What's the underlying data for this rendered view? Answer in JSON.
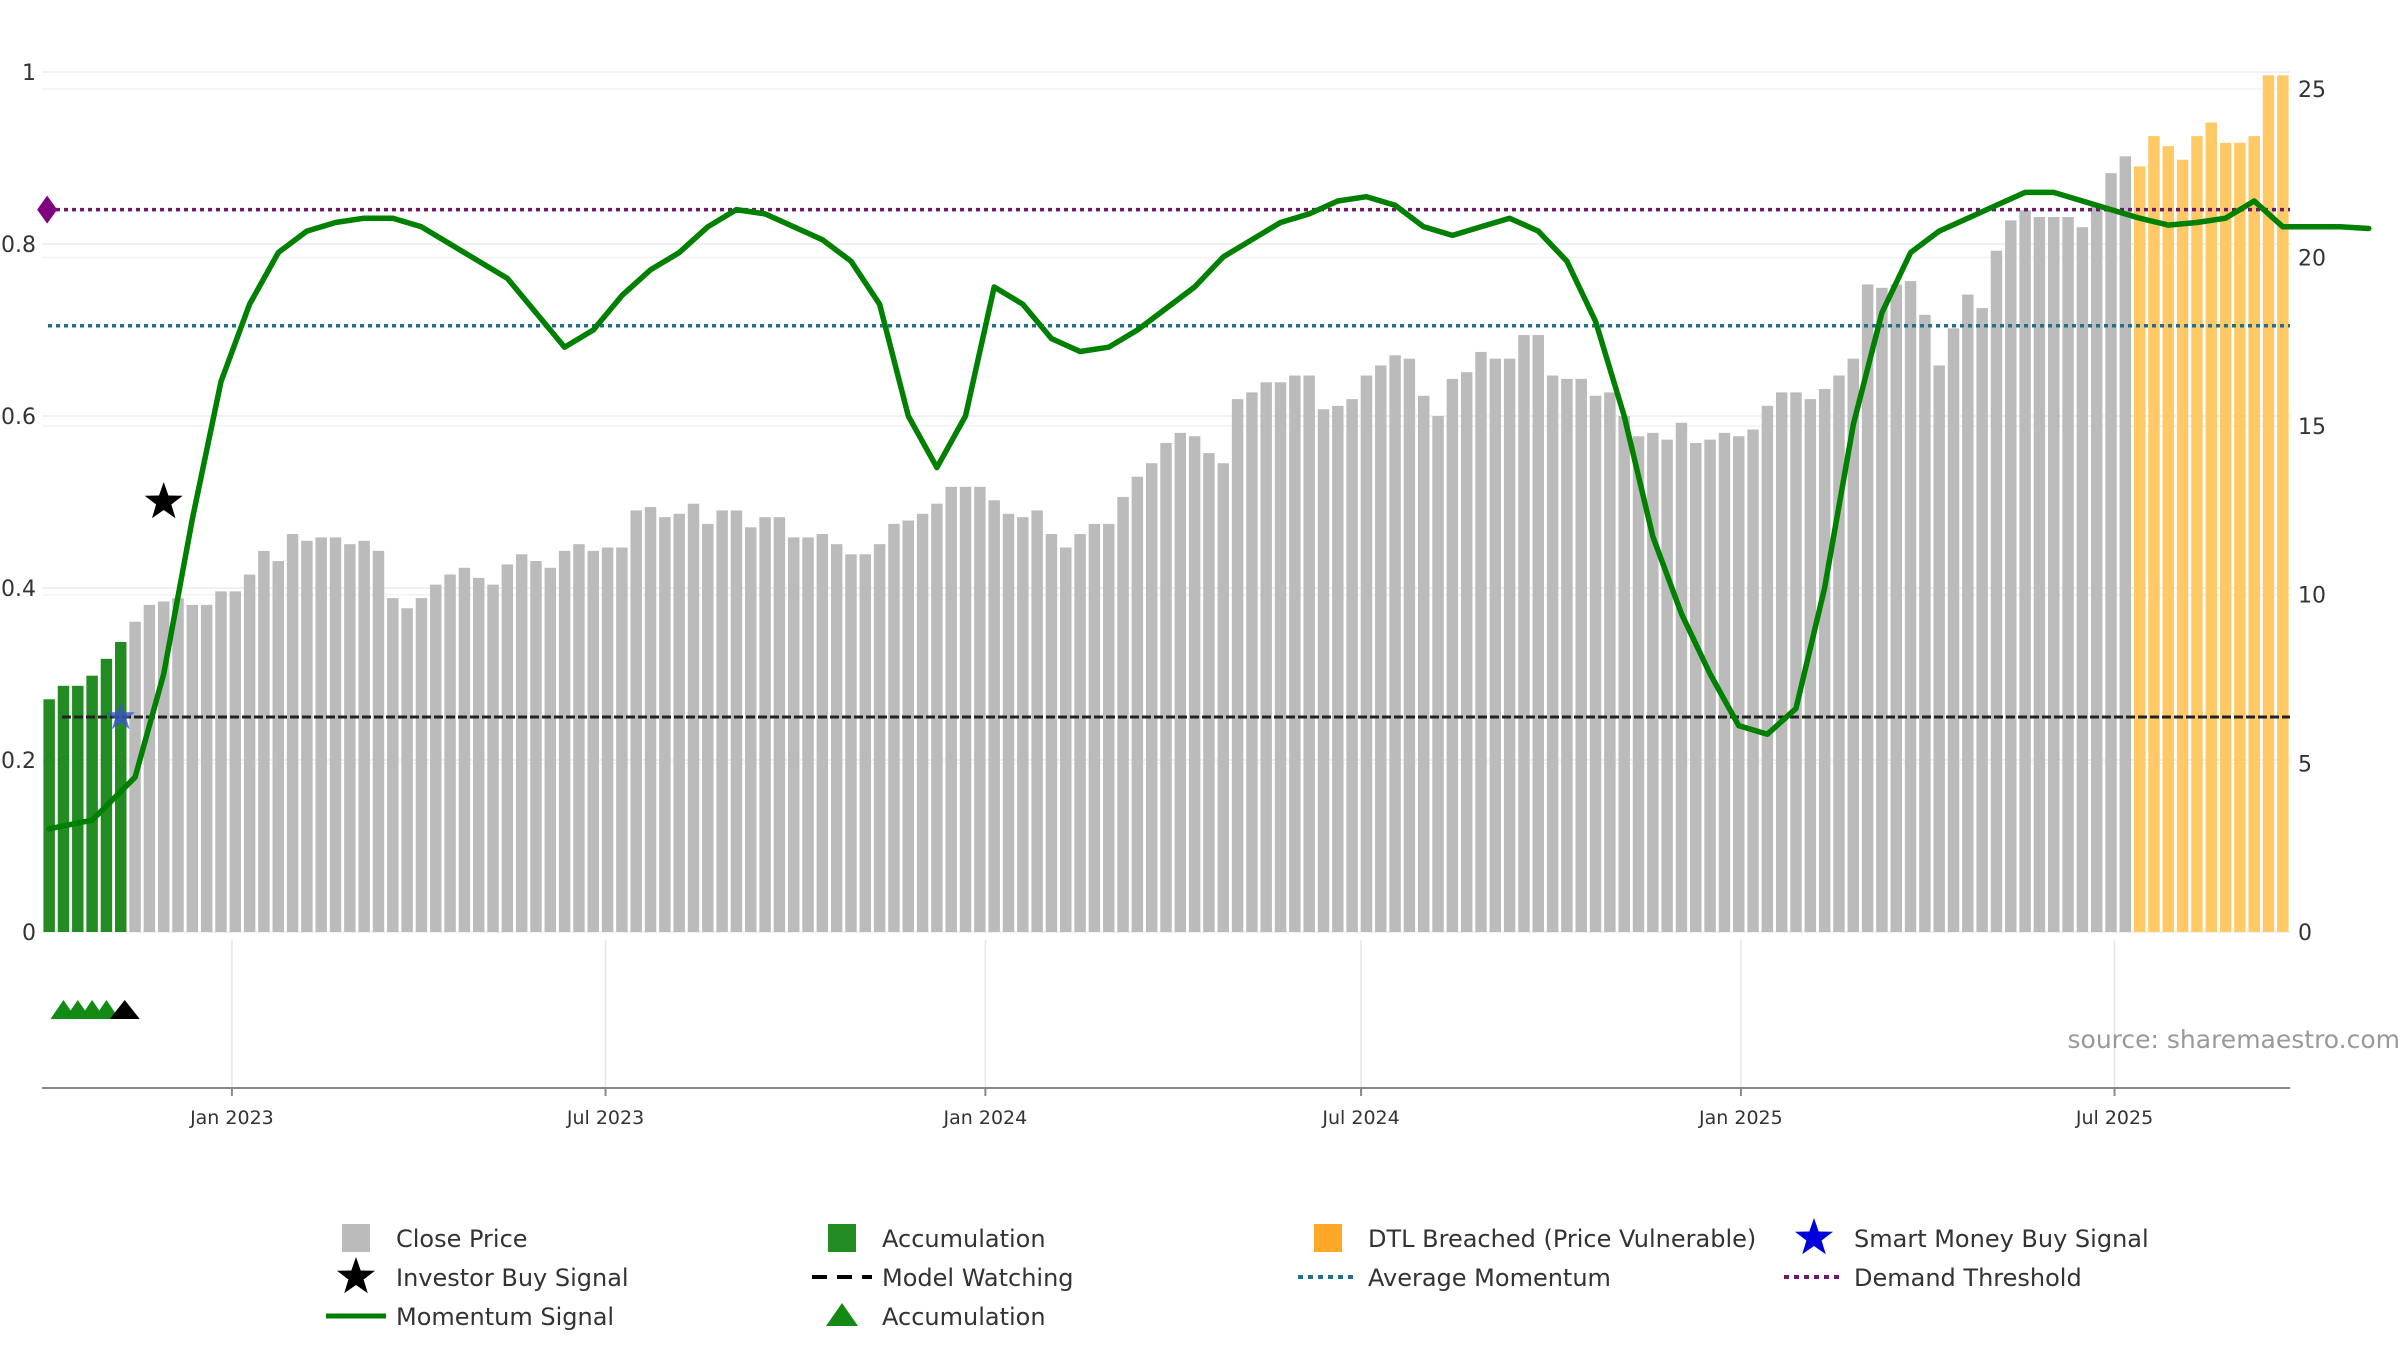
{
  "chart_data": {
    "type": "bar",
    "title": "",
    "source_label": "source: sharemaestro.com",
    "left_axis": {
      "ylim": [
        0,
        1
      ],
      "ticks": [
        0,
        0.2,
        0.4,
        0.6,
        0.8,
        1
      ],
      "labels": [
        "0",
        "0.2",
        "0.4",
        "0.6",
        "0.8",
        "1"
      ]
    },
    "right_axis": {
      "ylim": [
        0,
        25.5
      ],
      "ticks": [
        0,
        5,
        10,
        15,
        20,
        25
      ],
      "labels": [
        "0",
        "5",
        "10",
        "15",
        "20",
        "25"
      ]
    },
    "x_axis": {
      "start": "2022-10-01",
      "end": "2025-09-24",
      "ticks": [
        "2023-01-01",
        "2023-07-01",
        "2024-01-01",
        "2024-07-01",
        "2025-01-01",
        "2025-07-01"
      ],
      "labels": [
        "Jan 2023",
        "Jul 2023",
        "Jan 2024",
        "Jul 2024",
        "Jan 2025",
        "Jul 2025"
      ]
    },
    "series": [
      {
        "name": "Close Price",
        "axis": "right",
        "color": "#bbbbbb",
        "accumulation_color": "#228b22",
        "breached_color": "#ffc966",
        "accumulation_count": 6,
        "breached_start": 146,
        "values": [
          6.9,
          7.3,
          7.3,
          7.6,
          8.1,
          8.6,
          9.2,
          9.7,
          9.8,
          9.9,
          9.7,
          9.7,
          10.1,
          10.1,
          10.6,
          11.3,
          11,
          11.8,
          11.6,
          11.7,
          11.7,
          11.5,
          11.6,
          11.3,
          9.9,
          9.6,
          9.9,
          10.3,
          10.6,
          10.8,
          10.5,
          10.3,
          10.9,
          11.2,
          11,
          10.8,
          11.3,
          11.5,
          11.3,
          11.4,
          11.4,
          12.5,
          12.6,
          12.3,
          12.4,
          12.7,
          12.1,
          12.5,
          12.5,
          12.0,
          12.3,
          12.3,
          11.7,
          11.7,
          11.8,
          11.5,
          11.2,
          11.2,
          11.5,
          12.1,
          12.2,
          12.4,
          12.7,
          13.2,
          13.2,
          13.2,
          12.8,
          12.4,
          12.3,
          12.5,
          11.8,
          11.4,
          11.8,
          12.1,
          12.1,
          12.9,
          13.5,
          13.9,
          14.5,
          14.8,
          14.7,
          14.2,
          13.9,
          15.8,
          16,
          16.3,
          16.3,
          16.5,
          16.5,
          15.5,
          15.6,
          15.8,
          16.5,
          16.8,
          17.1,
          17.0,
          15.9,
          15.3,
          16.4,
          16.6,
          17.2,
          17,
          17,
          17.7,
          17.7,
          16.5,
          16.4,
          16.4,
          15.9,
          16,
          15.3,
          14.7,
          14.8,
          14.6,
          15.1,
          14.5,
          14.6,
          14.8,
          14.7,
          14.9,
          15.6,
          16,
          16,
          15.8,
          16.1,
          16.5,
          17,
          19.2,
          19.1,
          19.2,
          19.3,
          18.3,
          16.8,
          17.9,
          18.9,
          18.5,
          20.2,
          21.1,
          21.4,
          21.2,
          21.2,
          21.2,
          20.9,
          21.5,
          22.5,
          23.0,
          22.7,
          23.6,
          23.3,
          22.9,
          23.6,
          24.0,
          23.4,
          23.4,
          23.6,
          25.4,
          25.4
        ]
      },
      {
        "name": "Momentum Signal",
        "axis": "left",
        "color": "#008000",
        "x": [
          0,
          3,
          6,
          8,
          10,
          12,
          14,
          16,
          18,
          20,
          22,
          24,
          26,
          28,
          30,
          32,
          34,
          36,
          38,
          40,
          42,
          44,
          46,
          48,
          50,
          52,
          54,
          56,
          58,
          60,
          62,
          64,
          66,
          68,
          70,
          72,
          74,
          76,
          78,
          80,
          82,
          84,
          86,
          88,
          90,
          92,
          94,
          96,
          98,
          100,
          102,
          104,
          106,
          108,
          110,
          112,
          114,
          116,
          118,
          120,
          122,
          124,
          126,
          128,
          130,
          132,
          134,
          136,
          138,
          140,
          142,
          144,
          146,
          148,
          150,
          152,
          154,
          156,
          158,
          160,
          162
        ],
        "values": [
          0.12,
          0.13,
          0.18,
          0.3,
          0.48,
          0.64,
          0.73,
          0.79,
          0.815,
          0.825,
          0.83,
          0.83,
          0.82,
          0.8,
          0.78,
          0.76,
          0.72,
          0.68,
          0.7,
          0.74,
          0.77,
          0.79,
          0.82,
          0.84,
          0.835,
          0.82,
          0.805,
          0.78,
          0.73,
          0.6,
          0.54,
          0.6,
          0.75,
          0.73,
          0.69,
          0.675,
          0.68,
          0.7,
          0.725,
          0.75,
          0.785,
          0.805,
          0.825,
          0.835,
          0.85,
          0.855,
          0.845,
          0.82,
          0.81,
          0.82,
          0.83,
          0.815,
          0.78,
          0.71,
          0.6,
          0.46,
          0.37,
          0.3,
          0.24,
          0.23,
          0.26,
          0.4,
          0.59,
          0.72,
          0.79,
          0.815,
          0.83,
          0.845,
          0.86,
          0.86,
          0.85,
          0.84,
          0.83,
          0.822,
          0.825,
          0.83,
          0.85,
          0.82,
          0.82,
          0.82,
          0.818
        ]
      },
      {
        "name": "Model Watching",
        "axis": "left",
        "color": "#222222",
        "value": 0.25
      },
      {
        "name": "Average Momentum",
        "axis": "left",
        "color": "#1f6f8b",
        "value": 0.705
      },
      {
        "name": "Demand Threshold",
        "axis": "left",
        "color": "#6b1a6b",
        "value": 0.84
      }
    ],
    "markers": {
      "investor_buy_signal": {
        "bar_index": 8,
        "value": 0.5
      },
      "smart_money_buy_signal": {
        "bar_index": 5,
        "value": 0.25
      },
      "demand_threshold_marker": {
        "bar_index": 0,
        "value": 0.84
      },
      "accumulation_triangles": {
        "bar_indices": [
          1,
          2,
          3,
          4
        ],
        "color": "#138a13"
      },
      "watch_triangle": {
        "bar_index": 5,
        "color": "#000000"
      }
    },
    "legend": [
      {
        "label": "Close Price",
        "type": "square",
        "color": "#bbbbbb"
      },
      {
        "label": "Accumulation",
        "type": "square",
        "color": "#228b22"
      },
      {
        "label": "DTL Breached (Price Vulnerable)",
        "type": "square",
        "color": "#ffa726"
      },
      {
        "label": "Smart Money Buy Signal",
        "type": "star",
        "color": "#0000dd"
      },
      {
        "label": "Investor Buy Signal",
        "type": "star",
        "color": "#000000"
      },
      {
        "label": "Model Watching",
        "type": "dash",
        "color": "#000000"
      },
      {
        "label": "Average Momentum",
        "type": "dot",
        "color": "#1f6f8b"
      },
      {
        "label": "Demand Threshold",
        "type": "dot",
        "color": "#6b1a6b"
      },
      {
        "label": "Momentum Signal",
        "type": "line",
        "color": "#008000"
      },
      {
        "label": "Accumulation",
        "type": "triangle",
        "color": "#138a13"
      }
    ]
  }
}
